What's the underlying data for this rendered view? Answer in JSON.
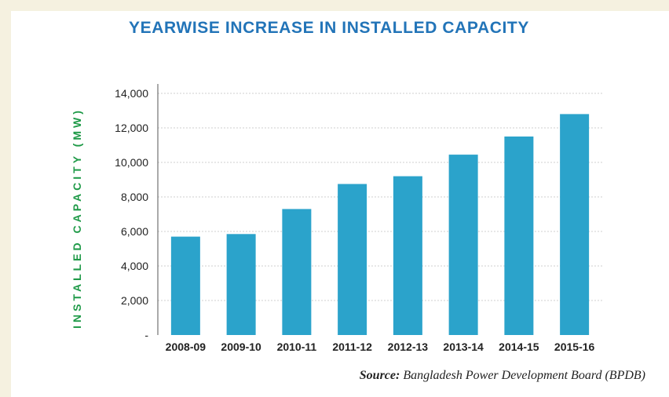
{
  "chart_data": {
    "type": "bar",
    "title": "YEARWISE INCREASE IN INSTALLED CAPACITY",
    "ylabel": "INSTALLED CAPACITY (MW)",
    "xlabel": "",
    "categories": [
      "2008-09",
      "2009-10",
      "2010-11",
      "2011-12",
      "2012-13",
      "2013-14",
      "2014-15",
      "2015-16"
    ],
    "values": [
      5700,
      5850,
      7300,
      8750,
      9200,
      10450,
      11500,
      12800
    ],
    "ylim": [
      0,
      14000
    ],
    "yticks": [
      0,
      2000,
      4000,
      6000,
      8000,
      10000,
      12000,
      14000
    ],
    "ytick_labels": [
      "-",
      "2,000",
      "4,000",
      "6,000",
      "8,000",
      "10,000",
      "12,000",
      "14,000"
    ],
    "grid": true,
    "bar_color": "#2ba3cb",
    "title_color": "#2274b8",
    "ylabel_color": "#1f9a48"
  },
  "source": {
    "label": "Source:",
    "text": "Bangladesh Power Development Board (BPDB)"
  }
}
